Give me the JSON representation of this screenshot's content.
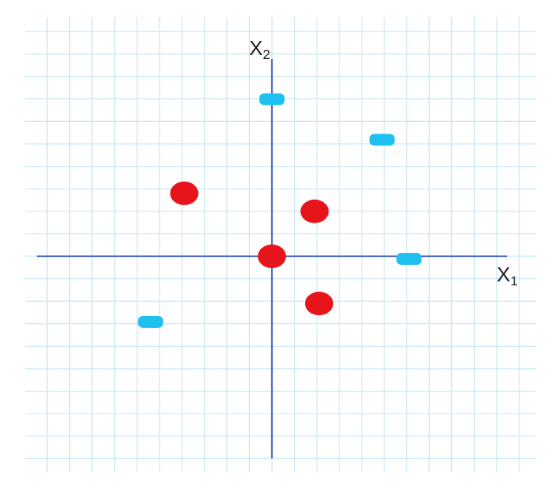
{
  "axes": {
    "x_label": "X",
    "x_subscript": "1",
    "y_label": "X",
    "y_subscript": "2"
  },
  "colors": {
    "background": "#ffffff",
    "grid": "#c6e7f6",
    "axis": "#4d6fc0",
    "class_a": "#e8141b",
    "class_b": "#1ec0f0",
    "label": "#222222"
  },
  "chart_data": {
    "type": "scatter",
    "grid": true,
    "series": [
      {
        "marker": "red-dot",
        "points": [
          [
            -3.9,
            2.8
          ],
          [
            1.9,
            2.0
          ],
          [
            0,
            0
          ],
          [
            2.1,
            -2.1
          ]
        ]
      },
      {
        "marker": "cyan-dash",
        "points": [
          [
            0,
            7.0
          ],
          [
            4.9,
            5.2
          ],
          [
            6.1,
            -0.1
          ],
          [
            -5.4,
            -2.9
          ]
        ]
      }
    ]
  }
}
